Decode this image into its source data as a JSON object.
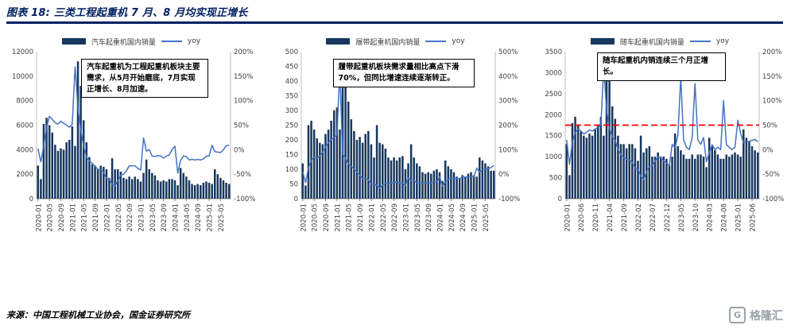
{
  "header": {
    "title": "图表 18: 三类工程起重机 7 月、8 月均实现正增长"
  },
  "footer": {
    "source": "来源：中国工程机械工业协会，国金证券研究所",
    "logo_letter": "G",
    "logo_text": "格隆汇"
  },
  "colors": {
    "bar": "#17375E",
    "line": "#4472C4",
    "rule": "#002060",
    "ref_line": "#FF0000"
  },
  "months": [
    "2020-01",
    "2020-02",
    "2020-03",
    "2020-04",
    "2020-05",
    "2020-06",
    "2020-07",
    "2020-08",
    "2020-09",
    "2020-10",
    "2020-11",
    "2020-12",
    "2021-01",
    "2021-02",
    "2021-03",
    "2021-04",
    "2021-05",
    "2021-06",
    "2021-07",
    "2021-08",
    "2021-09",
    "2021-10",
    "2021-11",
    "2021-12",
    "2022-01",
    "2022-02",
    "2022-03",
    "2022-04",
    "2022-05",
    "2022-06",
    "2022-07",
    "2022-08",
    "2022-09",
    "2022-10",
    "2022-11",
    "2022-12",
    "2023-01",
    "2023-02",
    "2023-03",
    "2023-04",
    "2023-05",
    "2023-06",
    "2023-07",
    "2023-08",
    "2023-09",
    "2023-10",
    "2023-11",
    "2023-12",
    "2024-01",
    "2024-02",
    "2024-03",
    "2024-04",
    "2024-05",
    "2024-06",
    "2024-07",
    "2024-08",
    "2024-09",
    "2024-10",
    "2024-11",
    "2024-12",
    "2025-01",
    "2025-02",
    "2025-03",
    "2025-04",
    "2025-05",
    "2025-06",
    "2025-07",
    "2025-08"
  ],
  "chart_data": [
    {
      "name": "truck-crane",
      "type": "bar",
      "annotation": "汽车起重机为工程起重机板块主要需求，从5月开始磨底，7月实现正增长、8月加速。",
      "x_tick_every": 4,
      "ref_line_percent": null,
      "left_axis": {
        "min": 0,
        "max": 12000,
        "step": 2000
      },
      "right_axis": {
        "min": -100,
        "max": 200,
        "step": 50,
        "unit": "%"
      },
      "series": [
        {
          "name": "汽车起重机国内销量",
          "type": "bar",
          "axis": "left",
          "values": [
            2700,
            1600,
            6100,
            6600,
            6000,
            5400,
            4400,
            3900,
            4100,
            4000,
            4600,
            4800,
            5900,
            4300,
            11200,
            9200,
            6400,
            4600,
            3400,
            2800,
            2700,
            2400,
            2700,
            2600,
            2400,
            1700,
            3300,
            2400,
            2400,
            2200,
            1700,
            1600,
            1800,
            1600,
            1800,
            1600,
            1400,
            2100,
            3200,
            2400,
            2100,
            1900,
            1500,
            1400,
            1500,
            1400,
            1600,
            1600,
            1500,
            1100,
            2500,
            2100,
            1800,
            1500,
            1200,
            1100,
            1200,
            1100,
            1300,
            1400,
            1300,
            1200,
            2400,
            2000,
            1700,
            1500,
            1300,
            1200
          ]
        },
        {
          "name": "yoy",
          "type": "line",
          "axis": "right",
          "values": [
            2,
            -25,
            8,
            45,
            68,
            62,
            55,
            52,
            58,
            54,
            50,
            46,
            52,
            169,
            84,
            39,
            7,
            -15,
            -23,
            -28,
            -34,
            -40,
            -41,
            -46,
            -59,
            -60,
            -71,
            -74,
            -63,
            -52,
            -50,
            -43,
            -33,
            -33,
            -33,
            -38,
            -42,
            24,
            -3,
            0,
            -13,
            -14,
            -12,
            -13,
            -17,
            -13,
            -11,
            0,
            7,
            -48,
            -22,
            -13,
            -14,
            -21,
            -20,
            -21,
            -20,
            -21,
            -19,
            -13,
            -13,
            9,
            -4,
            -5,
            -6,
            0,
            8,
            9
          ]
        }
      ]
    },
    {
      "name": "crawler-crane",
      "type": "bar",
      "annotation": "履带起重机板块需求量相比高点下滑70%，但同比增速连续逐渐转正。",
      "x_tick_every": 4,
      "ref_line_percent": null,
      "left_axis": {
        "min": 0,
        "max": 500,
        "step": 50
      },
      "right_axis": {
        "min": -100,
        "max": 500,
        "step": 100,
        "unit": "%"
      },
      "series": [
        {
          "name": "履带起重机国内销量",
          "type": "bar",
          "axis": "left",
          "values": [
            120,
            45,
            250,
            265,
            235,
            205,
            190,
            185,
            220,
            235,
            265,
            300,
            310,
            235,
            455,
            440,
            330,
            270,
            230,
            200,
            210,
            190,
            220,
            230,
            185,
            140,
            250,
            190,
            185,
            170,
            140,
            130,
            140,
            130,
            140,
            145,
            100,
            120,
            185,
            140,
            120,
            110,
            90,
            85,
            90,
            85,
            95,
            100,
            90,
            60,
            130,
            110,
            100,
            90,
            75,
            70,
            80,
            75,
            85,
            90,
            80,
            75,
            140,
            130,
            120,
            110,
            95,
            95
          ]
        },
        {
          "name": "yoy",
          "type": "line",
          "axis": "right",
          "values": [
            10,
            -35,
            25,
            55,
            70,
            65,
            75,
            90,
            110,
            130,
            140,
            150,
            160,
            422,
            82,
            66,
            40,
            32,
            21,
            8,
            -5,
            -19,
            -17,
            -23,
            -40,
            -40,
            -45,
            -57,
            -44,
            -37,
            -39,
            -35,
            -33,
            -32,
            -36,
            -37,
            -46,
            -14,
            -26,
            -26,
            -35,
            -35,
            -36,
            -35,
            -36,
            -35,
            -32,
            -31,
            -10,
            -50,
            -30,
            -21,
            -17,
            -18,
            -17,
            -18,
            -11,
            -12,
            -11,
            -10,
            -11,
            25,
            8,
            18,
            20,
            22,
            27,
            36
          ]
        }
      ]
    },
    {
      "name": "truck-mounted-crane",
      "type": "bar",
      "annotation": "随车起重机内销连续三个月正增长。",
      "x_tick_every": 5,
      "ref_line_percent": 50,
      "left_axis": {
        "min": 0,
        "max": 3500,
        "step": 500
      },
      "right_axis": {
        "min": -100,
        "max": 200,
        "step": 50,
        "unit": "%"
      },
      "series": [
        {
          "name": "随车起重机国内销量",
          "type": "bar",
          "axis": "left",
          "values": [
            1300,
            560,
            1800,
            1950,
            1750,
            1600,
            1500,
            1450,
            1550,
            1500,
            1650,
            1750,
            1950,
            1500,
            3250,
            2800,
            2200,
            1900,
            1500,
            1300,
            1300,
            1200,
            1300,
            1300,
            1200,
            900,
            1500,
            1100,
            1200,
            1250,
            1000,
            1000,
            1100,
            1000,
            1000,
            950,
            800,
            1000,
            1550,
            1250,
            1150,
            1050,
            950,
            950,
            1050,
            950,
            1050,
            1050,
            1000,
            750,
            1450,
            1250,
            1150,
            1050,
            950,
            950,
            1050,
            1000,
            1050,
            1100,
            1050,
            1000,
            1650,
            1450,
            1350,
            1250,
            1150,
            1100
          ]
        },
        {
          "name": "yoy",
          "type": "line",
          "axis": "right",
          "values": [
            20,
            -30,
            15,
            35,
            42,
            38,
            32,
            36,
            40,
            38,
            42,
            46,
            50,
            168,
            81,
            44,
            26,
            19,
            0,
            -10,
            -16,
            -20,
            -21,
            -26,
            -38,
            -40,
            -54,
            -61,
            -45,
            -34,
            -33,
            -23,
            -15,
            -17,
            -23,
            -27,
            -33,
            11,
            3,
            30,
            148,
            20,
            5,
            0,
            25,
            135,
            20,
            11,
            25,
            -25,
            -6,
            10,
            0,
            5,
            0,
            100,
            10,
            5,
            0,
            5,
            60,
            33,
            14,
            16,
            17,
            19,
            21,
            16
          ]
        }
      ]
    }
  ]
}
